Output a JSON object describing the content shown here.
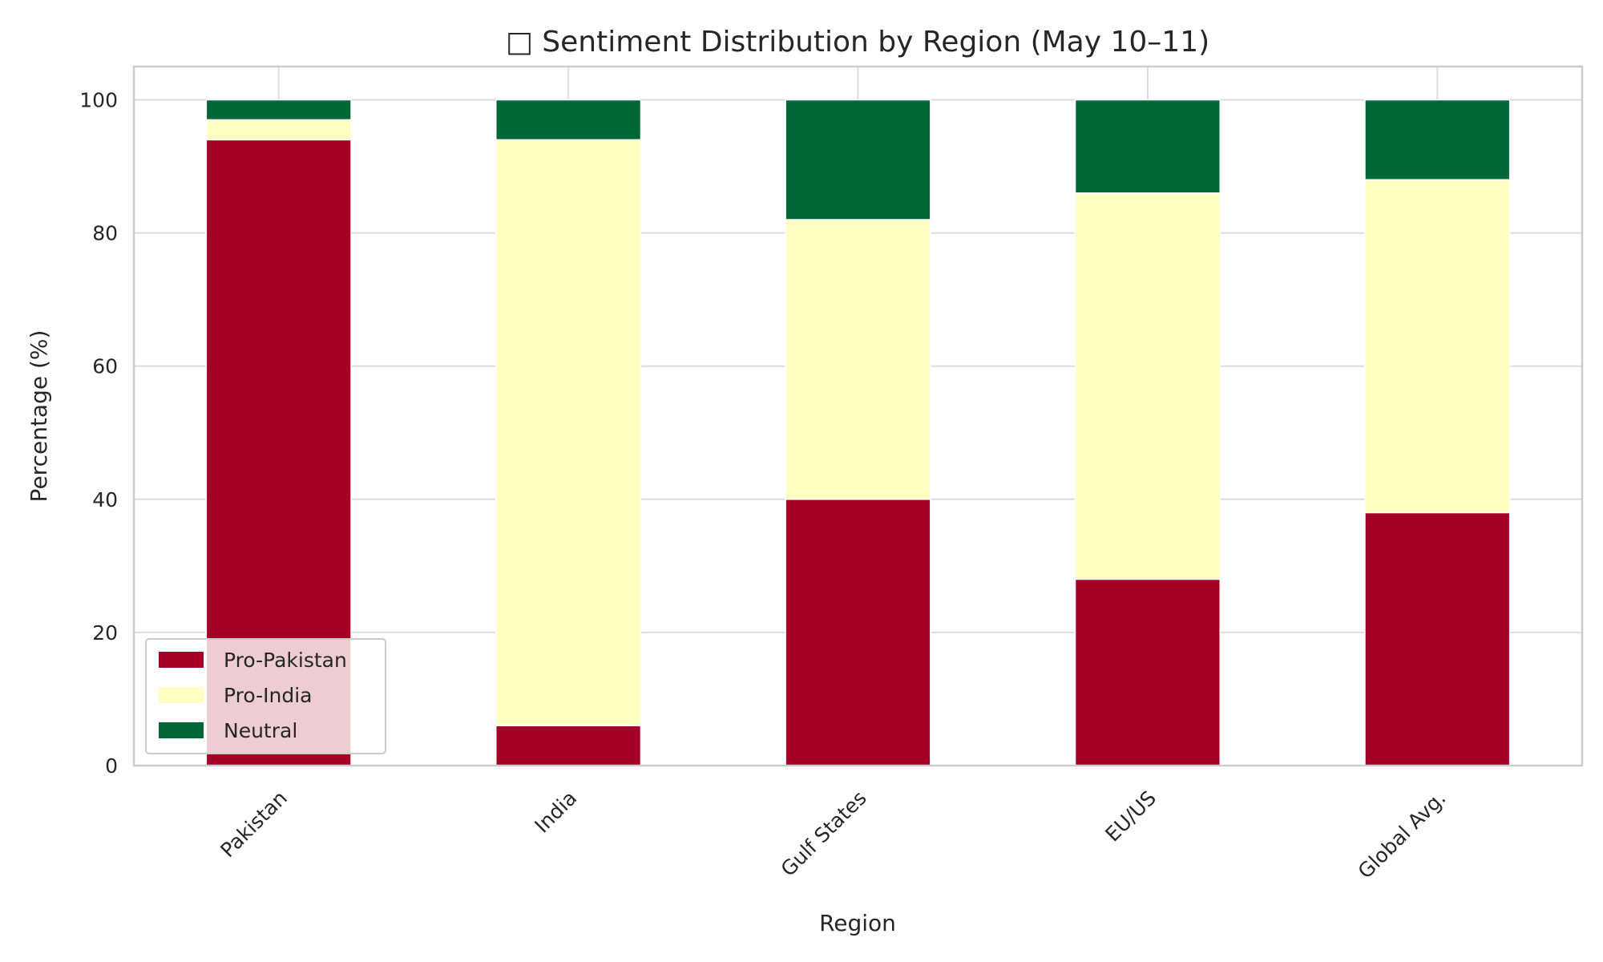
{
  "chart_data": {
    "type": "bar",
    "stacked": true,
    "title": "□ Sentiment Distribution by Region (May 10–11)",
    "xlabel": "Region",
    "ylabel": "Percentage (%)",
    "ylim": [
      0,
      105
    ],
    "yticks": [
      0,
      20,
      40,
      60,
      80,
      100
    ],
    "grid": true,
    "legend_position": "lower-left",
    "categories": [
      "Pakistan",
      "India",
      "Gulf States",
      "EU/US",
      "Global Avg."
    ],
    "series": [
      {
        "name": "Pro-Pakistan",
        "color": "#a50026",
        "values": [
          94,
          6,
          40,
          28,
          38
        ]
      },
      {
        "name": "Pro-India",
        "color": "#feffc0",
        "values": [
          3,
          88,
          42,
          58,
          50
        ]
      },
      {
        "name": "Neutral",
        "color": "#006837",
        "values": [
          3,
          6,
          18,
          14,
          12
        ]
      }
    ]
  }
}
